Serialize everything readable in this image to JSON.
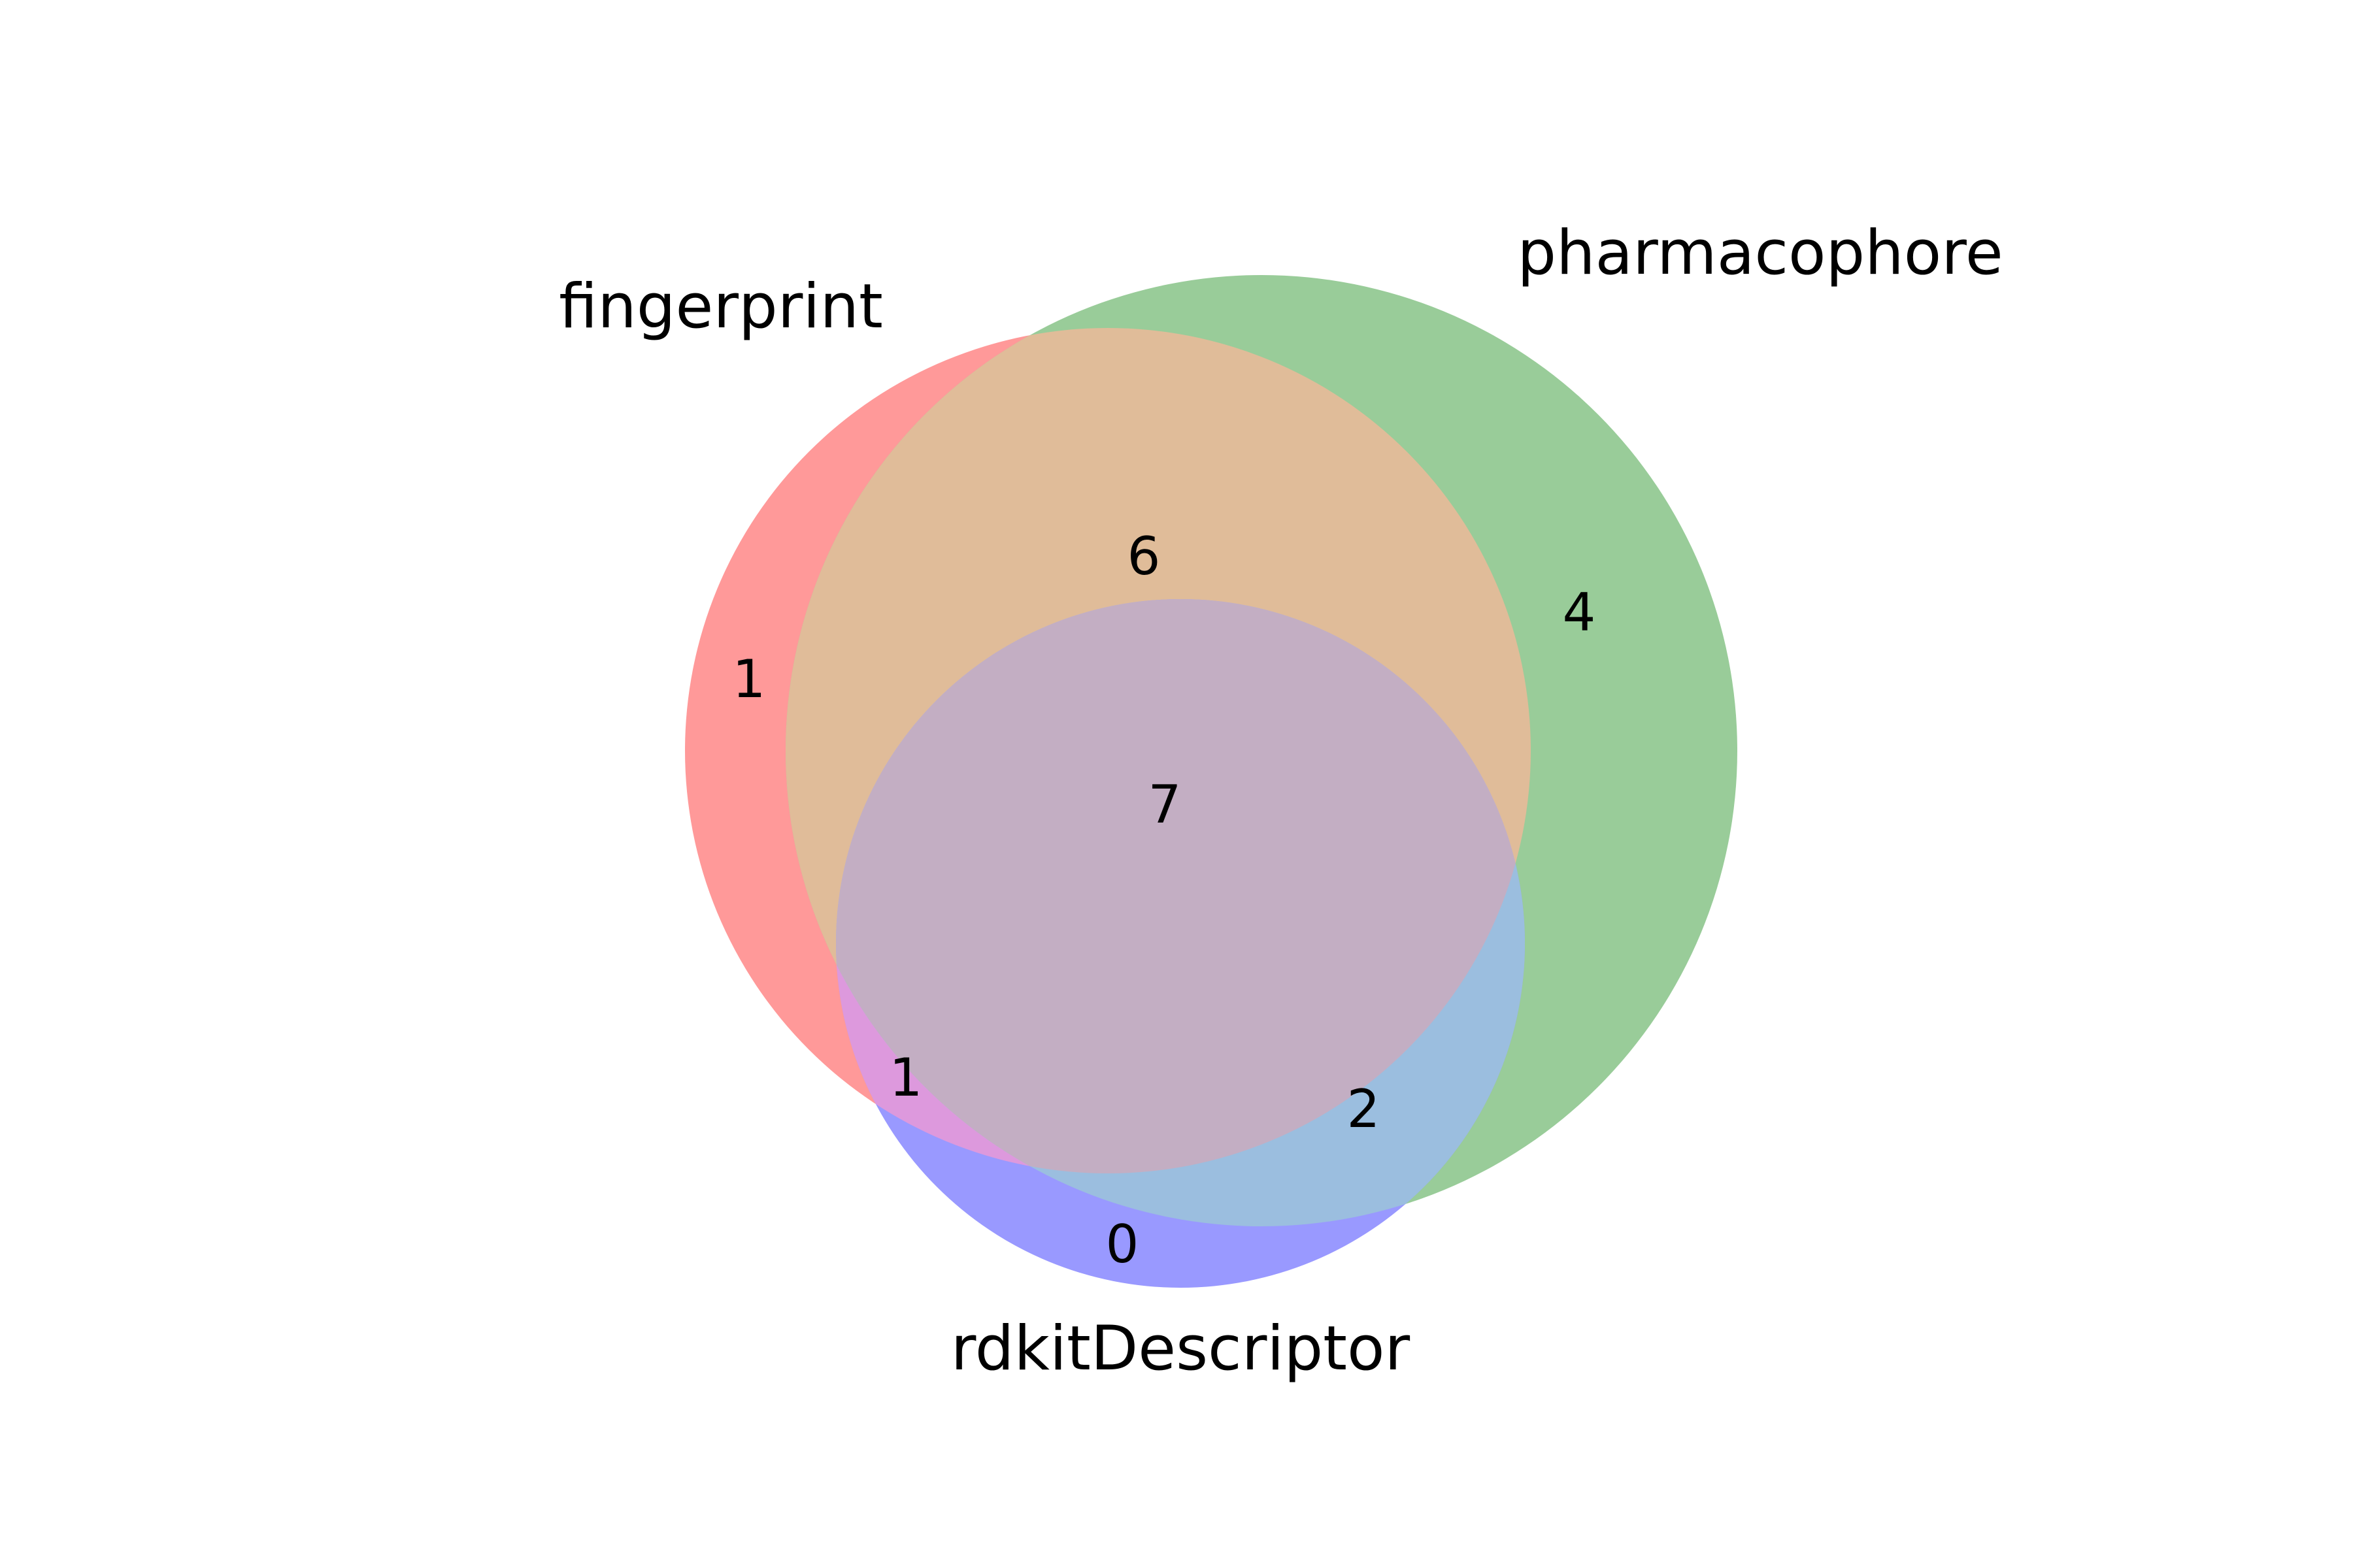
{
  "chart_data": {
    "type": "venn3",
    "sets": [
      {
        "name": "fingerprint",
        "color": "#ff9999"
      },
      {
        "name": "pharmacophore",
        "color": "#99cc99"
      },
      {
        "name": "rdkitDescriptor",
        "color": "#9999ff"
      }
    ],
    "regions": {
      "fingerprint_only": "1",
      "pharmacophore_only": "4",
      "rdkitDescriptor_only": "0",
      "fingerprint_pharmacophore": "6",
      "fingerprint_rdkitDescriptor": "1",
      "pharmacophore_rdkitDescriptor": "2",
      "all_three": "7"
    },
    "region_colors": {
      "fingerprint_pharmacophore": "#e0bc99",
      "fingerprint_rdkitDescriptor": "#dd99dd",
      "pharmacophore_rdkitDescriptor": "#9bbedf",
      "all_three": "#c3aec3"
    }
  }
}
